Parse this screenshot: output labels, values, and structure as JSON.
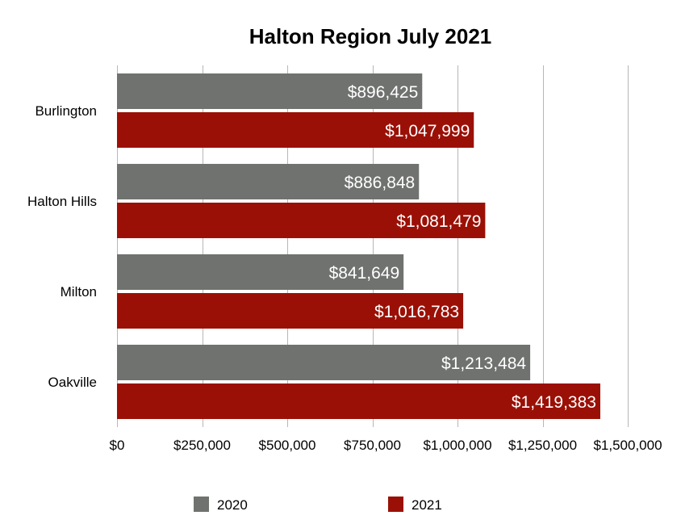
{
  "chart_data": {
    "type": "bar",
    "orientation": "horizontal",
    "title": "Halton Region July 2021",
    "categories": [
      "Burlington",
      "Halton Hills",
      "Milton",
      "Oakville"
    ],
    "series": [
      {
        "name": "2020",
        "color": "#6f726f",
        "values": [
          896425,
          886848,
          841649,
          1213484
        ],
        "labels": [
          "$896,425",
          "$886,848",
          "$841,649",
          "$1,213,484"
        ]
      },
      {
        "name": "2021",
        "color": "#9b1006",
        "values": [
          1047999,
          1081479,
          1016783,
          1419383
        ],
        "labels": [
          "$1,047,999",
          "$1,081,479",
          "$1,016,783",
          "$1,419,383"
        ]
      }
    ],
    "xlim": [
      0,
      1500000
    ],
    "xticks": [
      0,
      250000,
      500000,
      750000,
      1000000,
      1250000,
      1500000
    ],
    "xtick_labels": [
      "$0",
      "$250,000",
      "$500,000",
      "$750,000",
      "$1,000,000",
      "$1,250,000",
      "$1,500,000"
    ],
    "grid": "vertical",
    "legend_position": "bottom"
  }
}
